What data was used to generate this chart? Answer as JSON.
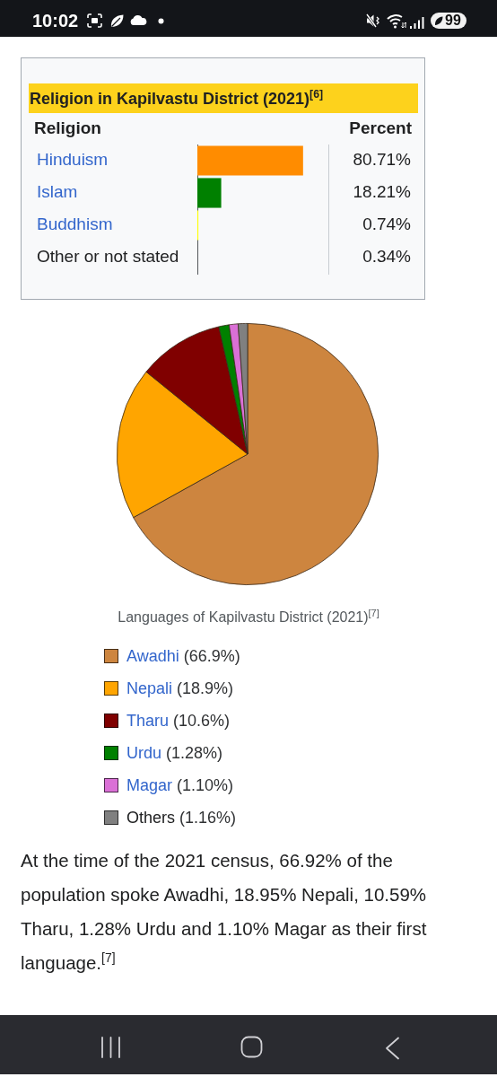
{
  "chart_data": [
    {
      "type": "other",
      "annotations": [
        "10:02",
        "99"
      ]
    },
    {
      "type": "bar",
      "orientation": "horizontal",
      "title": "Religion in Kapilvastu District (2021)$^{[6]}$",
      "ylabel": "Religion",
      "xlabel": "Percent",
      "categories": [
        "Hinduism",
        "Islam",
        "Buddhism",
        "Other or not stated"
      ],
      "values": [
        80.71,
        18.21,
        0.74,
        0.34
      ],
      "colors": [
        "#ff8c00",
        "#008000",
        "#ffff00",
        "#555555"
      ],
      "value_labels": [
        "80.71%",
        "18.21%",
        "0.74%",
        "0.34%"
      ],
      "xlim": [
        0,
        100
      ],
      "tick_labels": "y"
    },
    {
      "type": "pie",
      "title": "Languages of Kapilvastu District (2021)$^{[7]}$",
      "categories": [
        "Awadhi (66.9%)",
        "Nepali (18.9%)",
        "Tharu (10.6%)",
        "Urdu (1.28%)",
        "Magar (1.10%)",
        "Others (1.16%)"
      ],
      "values": [
        66.9,
        18.9,
        10.6,
        1.28,
        1.1,
        1.16
      ],
      "colors": [
        "#cd853f",
        "#ffa500",
        "#800000",
        "#008000",
        "#da70d6",
        "#808080"
      ],
      "legend": "bottom",
      "annotations": [
        "At the time of the 2021 census, 66.92% of the population spoke Awadhi, 18.95% Nepali, 10.59% Tharu, 1.28% Urdu and 1.10% Magar as their first language.$^{[7]}$"
      ]
    }
  ]
}
